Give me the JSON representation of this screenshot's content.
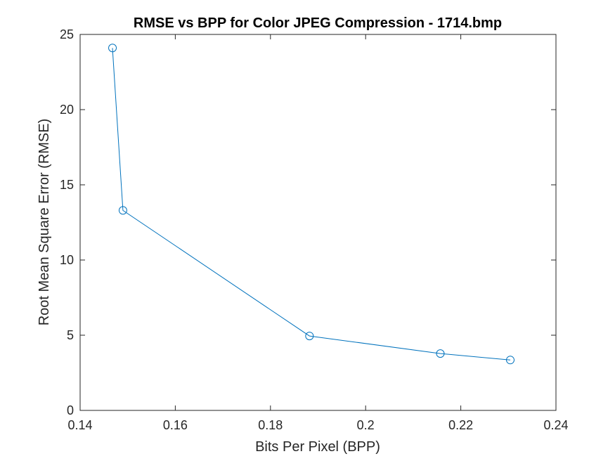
{
  "chart_data": {
    "type": "line",
    "title": "RMSE vs BPP for Color JPEG Compression - 1714.bmp",
    "xlabel": "Bits Per Pixel (BPP)",
    "ylabel": "Root Mean Square Error (RMSE)",
    "xlim": [
      0.14,
      0.24
    ],
    "ylim": [
      0,
      25
    ],
    "xticks": [
      0.14,
      0.16,
      0.18,
      0.2,
      0.22,
      0.24
    ],
    "xtick_labels": [
      "0.14",
      "0.16",
      "0.18",
      "0.2",
      "0.22",
      "0.24"
    ],
    "yticks": [
      0,
      5,
      10,
      15,
      20,
      25
    ],
    "ytick_labels": [
      "0",
      "5",
      "10",
      "15",
      "20",
      "25"
    ],
    "grid": false,
    "series": [
      {
        "color": "#0072BD",
        "marker": "circle",
        "x": [
          0.1468,
          0.149,
          0.1882,
          0.2157,
          0.2304
        ],
        "y": [
          24.1,
          13.3,
          4.95,
          3.78,
          3.35
        ]
      }
    ]
  }
}
